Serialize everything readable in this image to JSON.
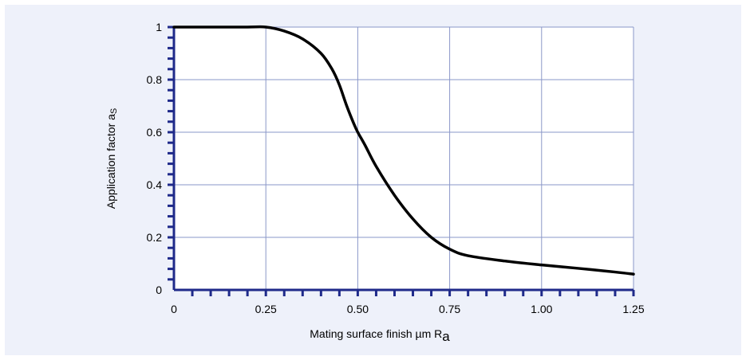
{
  "chart_data": {
    "type": "line",
    "title": "",
    "xlabel_main": "Mating surface finish µm R",
    "xlabel_sub": "a",
    "ylabel_main": "Application factor a",
    "ylabel_sub": "S",
    "xlim": [
      0,
      1.25
    ],
    "ylim": [
      0,
      1
    ],
    "x_tick_labels": [
      "0",
      "0.25",
      "0.50",
      "0.75",
      "1.00",
      "1.25"
    ],
    "x_tick_values": [
      0,
      0.25,
      0.5,
      0.75,
      1.0,
      1.25
    ],
    "y_tick_labels": [
      "0",
      "0.2",
      "0.4",
      "0.6",
      "0.8",
      "1"
    ],
    "y_tick_values": [
      0,
      0.2,
      0.4,
      0.6,
      0.8,
      1.0
    ],
    "grid": true,
    "colors": {
      "background": "#eef1fa",
      "plot_area": "#ffffff",
      "grid": "#8a97c8",
      "axis": "#1f2a8a",
      "line": "#000000"
    },
    "series": [
      {
        "x": [
          0,
          0.1,
          0.2,
          0.25,
          0.3,
          0.35,
          0.4,
          0.43,
          0.45,
          0.47,
          0.49,
          0.5,
          0.52,
          0.55,
          0.6,
          0.65,
          0.7,
          0.75,
          0.8,
          0.9,
          1.0,
          1.1,
          1.2,
          1.25
        ],
        "y": [
          1.0,
          1.0,
          1.0,
          1.0,
          0.985,
          0.955,
          0.9,
          0.84,
          0.78,
          0.7,
          0.63,
          0.6,
          0.55,
          0.47,
          0.36,
          0.27,
          0.2,
          0.155,
          0.13,
          0.11,
          0.095,
          0.082,
          0.068,
          0.06
        ]
      }
    ]
  }
}
